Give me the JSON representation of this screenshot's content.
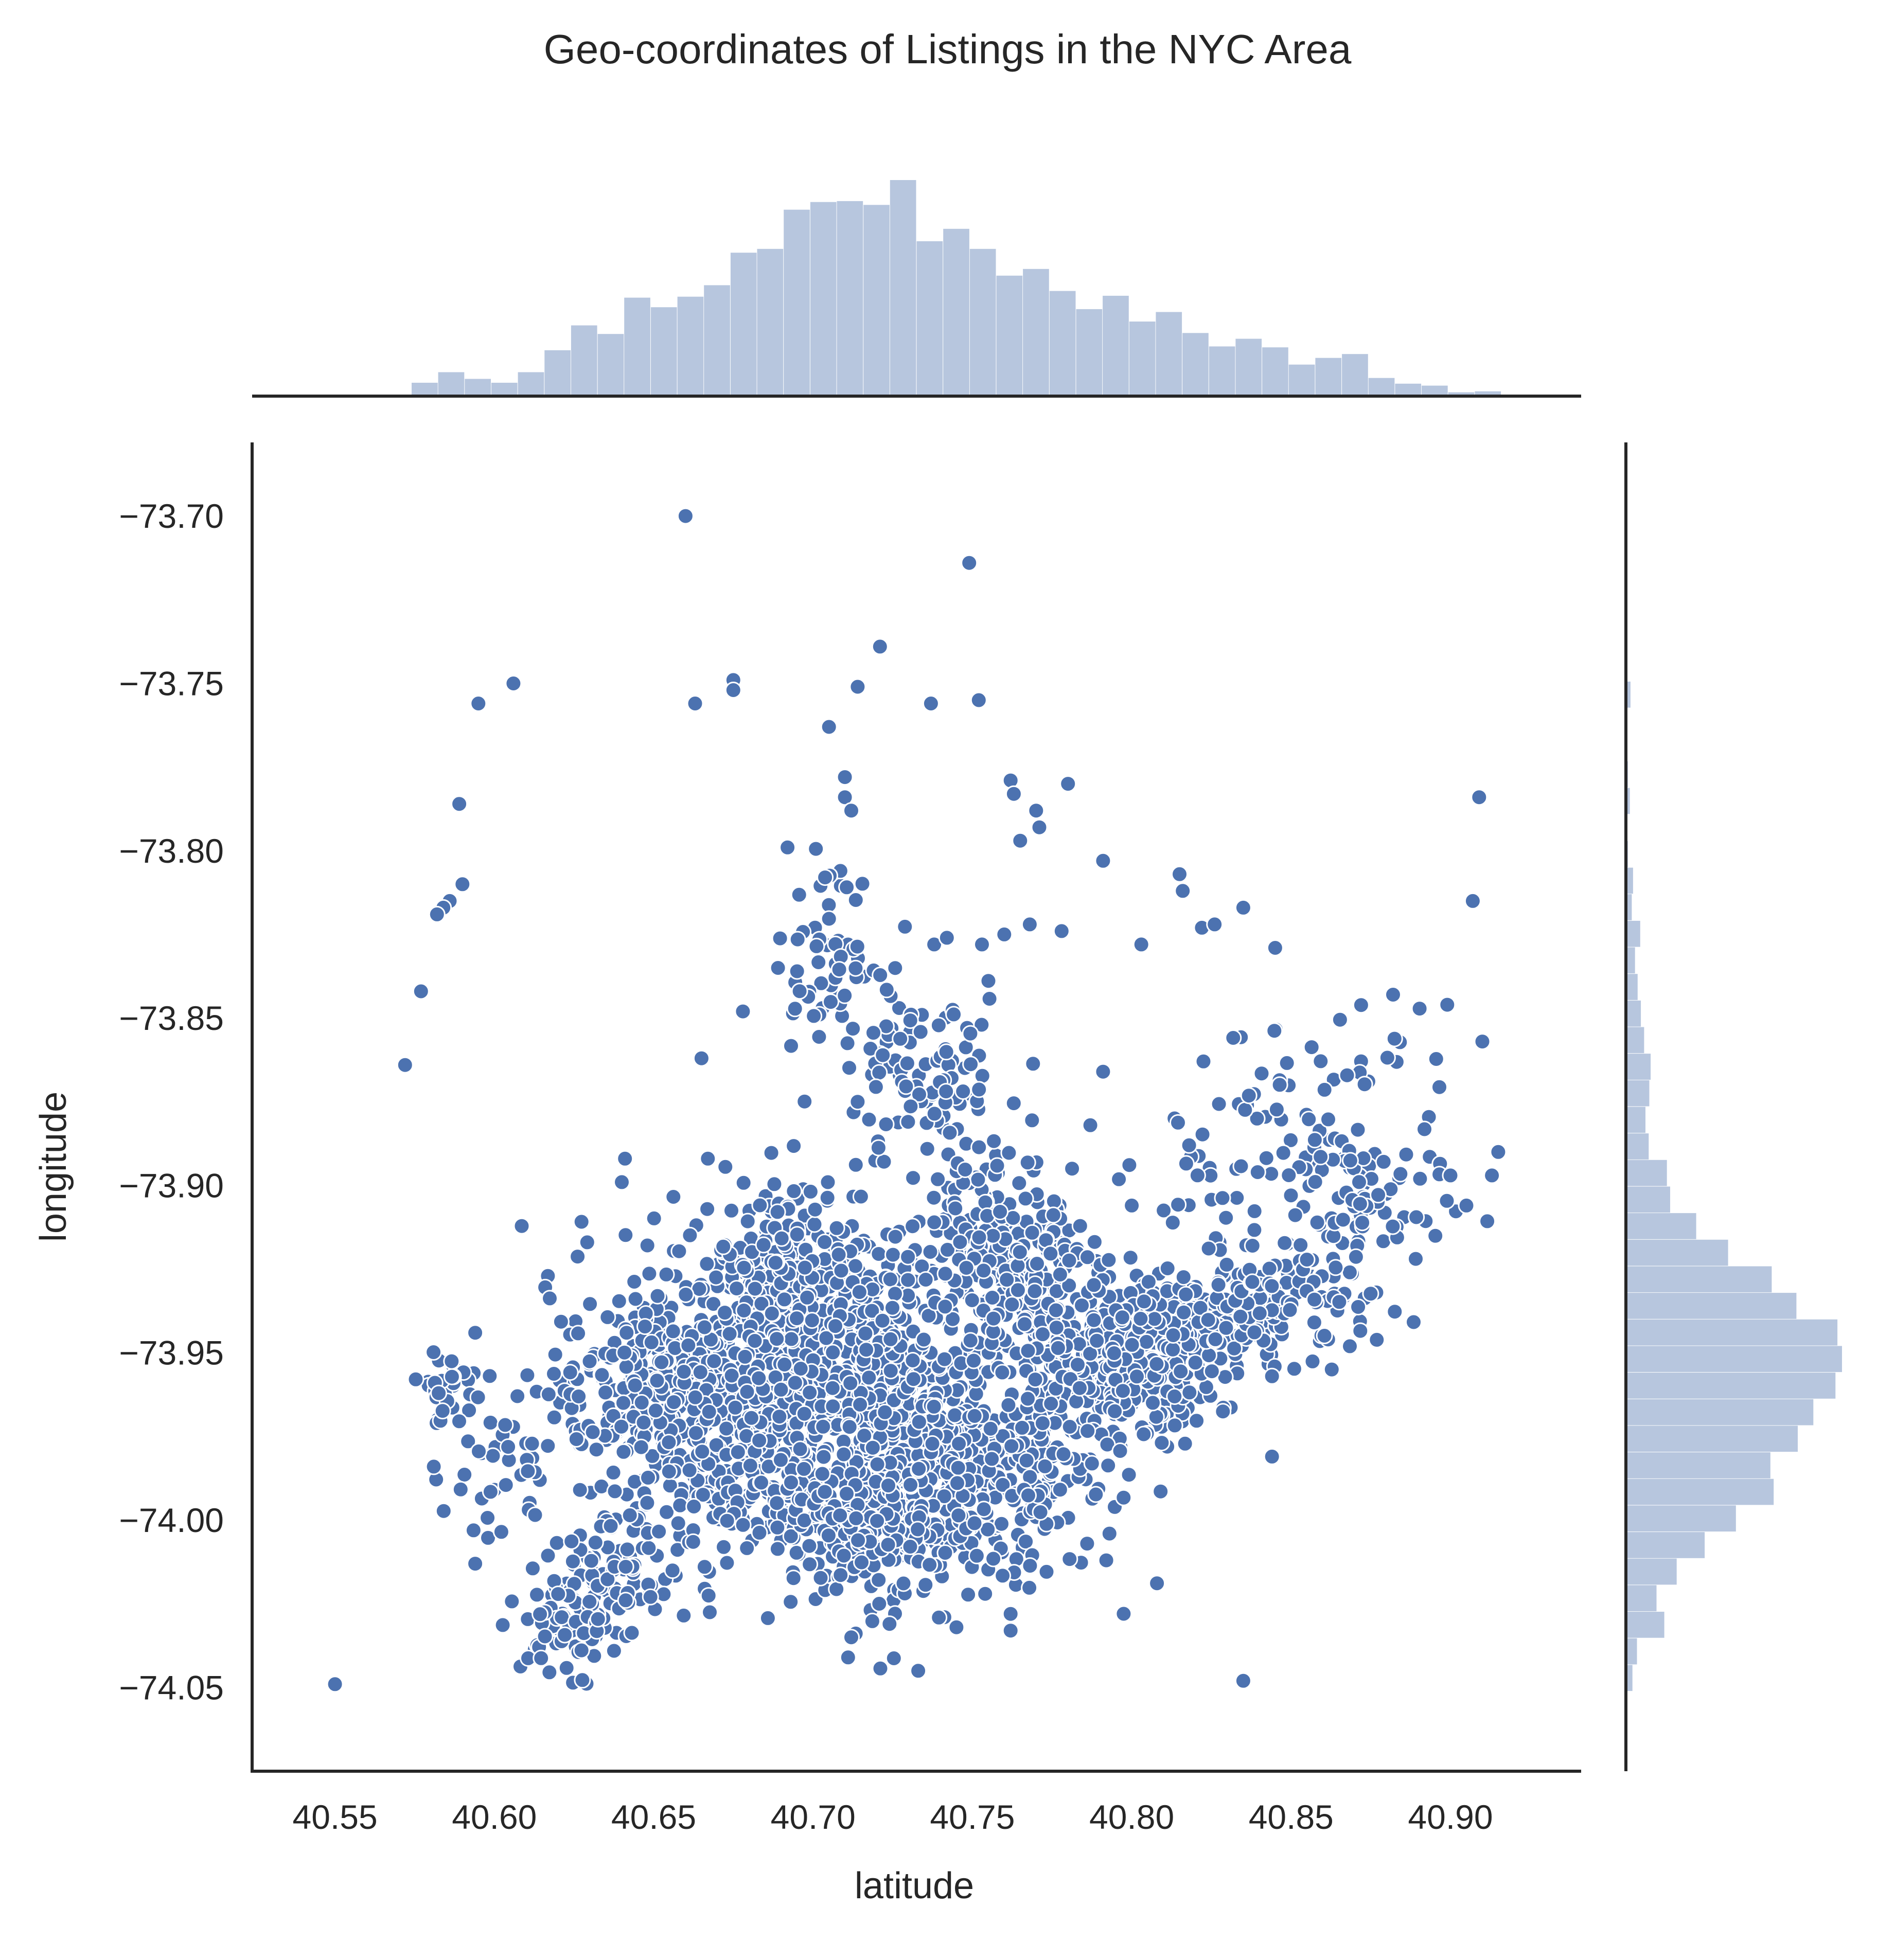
{
  "chart_data": {
    "type": "scatter",
    "title": "Geo-coordinates of Listings in the NYC Area",
    "xlabel": "latitude",
    "ylabel": "longitude",
    "xlim": [
      40.524,
      40.941
    ],
    "ylim": [
      -74.075,
      -73.678
    ],
    "x_ticks": [
      40.55,
      40.6,
      40.65,
      40.7,
      40.75,
      40.8,
      40.85,
      40.9
    ],
    "x_tick_labels": [
      "40.55",
      "40.60",
      "40.65",
      "40.70",
      "40.75",
      "40.80",
      "40.85",
      "40.90"
    ],
    "y_ticks": [
      -73.7,
      -73.75,
      -73.8,
      -73.85,
      -73.9,
      -73.95,
      -74.0,
      -74.05
    ],
    "y_tick_labels": [
      "−73.70",
      "−73.75",
      "−73.80",
      "−73.85",
      "−73.90",
      "−73.95",
      "−74.00",
      "−74.05"
    ],
    "grid": false,
    "marginal_histograms": true,
    "colors": {
      "points": "#4c72b0",
      "histogram": "#b7c6de",
      "axes": "#262626"
    },
    "outliers": [
      [
        40.66,
        -73.7
      ],
      [
        40.749,
        -73.714
      ],
      [
        40.721,
        -73.739
      ],
      [
        40.606,
        -73.75
      ],
      [
        40.595,
        -73.756
      ],
      [
        40.663,
        -73.756
      ],
      [
        40.675,
        -73.749
      ],
      [
        40.675,
        -73.752
      ],
      [
        40.714,
        -73.751
      ],
      [
        40.737,
        -73.756
      ],
      [
        40.752,
        -73.755
      ],
      [
        40.705,
        -73.763
      ],
      [
        40.71,
        -73.778
      ],
      [
        40.762,
        -73.779
      ],
      [
        40.763,
        -73.783
      ],
      [
        40.78,
        -73.78
      ],
      [
        40.71,
        -73.784
      ],
      [
        40.712,
        -73.788
      ],
      [
        40.77,
        -73.788
      ],
      [
        40.771,
        -73.793
      ],
      [
        40.765,
        -73.797
      ],
      [
        40.589,
        -73.786
      ],
      [
        40.59,
        -73.81
      ],
      [
        40.586,
        -73.815
      ],
      [
        40.584,
        -73.817
      ],
      [
        40.582,
        -73.819
      ],
      [
        40.577,
        -73.842
      ],
      [
        40.572,
        -73.864
      ],
      [
        40.692,
        -73.799
      ],
      [
        40.791,
        -73.803
      ],
      [
        40.815,
        -73.807
      ],
      [
        40.816,
        -73.812
      ],
      [
        40.835,
        -73.817
      ],
      [
        40.822,
        -73.823
      ],
      [
        40.826,
        -73.822
      ],
      [
        40.909,
        -73.784
      ],
      [
        40.907,
        -73.815
      ],
      [
        40.55,
        -74.049
      ],
      [
        40.835,
        -74.048
      ],
      [
        40.844,
        -73.981
      ],
      [
        40.844,
        -73.957
      ],
      [
        40.882,
        -73.843
      ],
      [
        40.899,
        -73.846
      ],
      [
        40.91,
        -73.857
      ],
      [
        40.845,
        -73.829
      ],
      [
        40.738,
        -73.828
      ],
      [
        40.742,
        -73.826
      ],
      [
        40.753,
        -73.828
      ],
      [
        40.778,
        -73.824
      ],
      [
        40.803,
        -73.828
      ],
      [
        40.818,
        -73.888
      ],
      [
        40.8,
        -73.906
      ],
      [
        40.905,
        -73.906
      ],
      [
        40.915,
        -73.89
      ],
      [
        40.913,
        -73.897
      ],
      [
        40.9,
        -73.897
      ],
      [
        40.787,
        -73.882
      ],
      [
        40.791,
        -73.866
      ],
      [
        40.665,
        -73.862
      ],
      [
        40.667,
        -73.892
      ],
      [
        40.641,
        -73.892
      ],
      [
        40.64,
        -73.899
      ],
      [
        40.594,
        -73.944
      ],
      [
        40.581,
        -73.984
      ],
      [
        40.594,
        -74.013
      ],
      [
        40.754,
        -74.022
      ],
      [
        40.745,
        -74.032
      ],
      [
        40.733,
        -74.045
      ],
      [
        40.712,
        -74.035
      ],
      [
        40.711,
        -74.041
      ],
      [
        40.724,
        -74.031
      ],
      [
        40.762,
        -74.033
      ],
      [
        40.762,
        -74.028
      ],
      [
        40.792,
        -74.012
      ],
      [
        40.793,
        -74.004
      ],
      [
        40.786,
        -74.007
      ],
      [
        40.695,
        -73.836
      ],
      [
        40.689,
        -73.835
      ],
      [
        40.678,
        -73.848
      ],
      [
        40.707,
        -73.942
      ],
      [
        40.714,
        -73.875
      ],
      [
        40.768,
        -73.822
      ],
      [
        40.76,
        -73.825
      ]
    ]
  }
}
